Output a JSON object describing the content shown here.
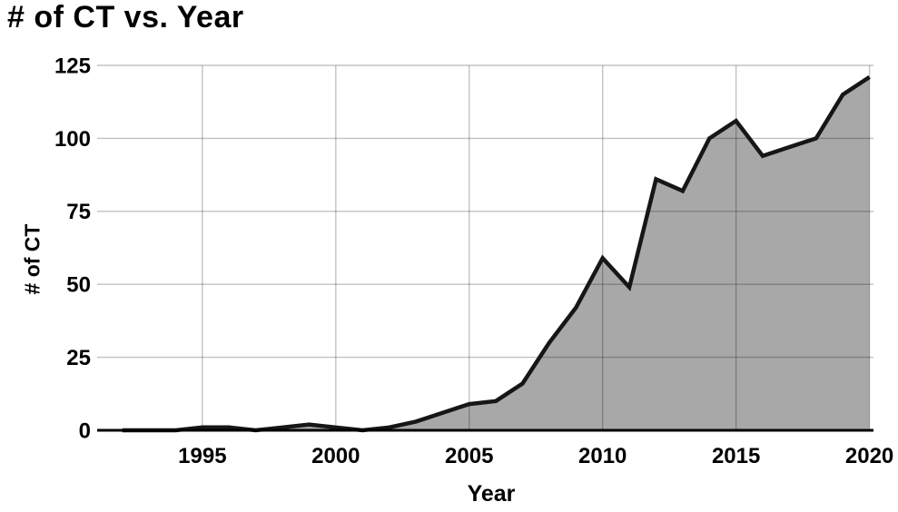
{
  "chart_data": {
    "type": "area",
    "title": "# of CT vs. Year",
    "xlabel": "Year",
    "ylabel": "# of CT",
    "x": [
      1992,
      1993,
      1994,
      1995,
      1996,
      1997,
      1998,
      1999,
      2000,
      2001,
      2002,
      2003,
      2004,
      2005,
      2006,
      2007,
      2008,
      2009,
      2010,
      2011,
      2012,
      2013,
      2014,
      2015,
      2016,
      2017,
      2018,
      2019,
      2020
    ],
    "values": [
      0,
      0,
      0,
      1,
      1,
      0,
      1,
      2,
      1,
      0,
      1,
      3,
      6,
      9,
      10,
      16,
      30,
      42,
      59,
      49,
      86,
      82,
      100,
      106,
      94,
      97,
      100,
      115,
      121
    ],
    "x_ticks": [
      1995,
      2000,
      2005,
      2010,
      2015,
      2020
    ],
    "y_ticks": [
      0,
      25,
      50,
      75,
      100,
      125
    ],
    "xlim": [
      1991.5,
      2020.15
    ],
    "ylim": [
      0,
      125
    ],
    "grid": true,
    "legend_position": "none",
    "colors": {
      "line": "#161616",
      "fill": "#a8a8a8",
      "grid": "rgba(0,0,0,0.24)",
      "axis": "#000000",
      "text": "#000000",
      "background": "#ffffff"
    }
  }
}
